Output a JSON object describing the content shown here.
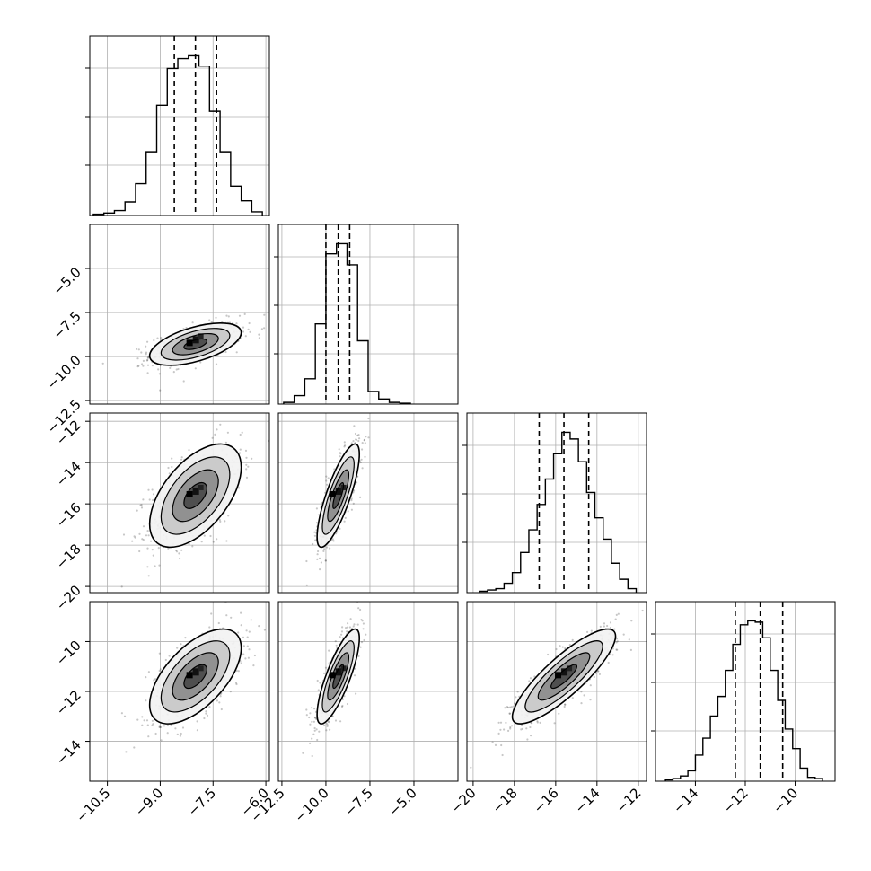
{
  "chart_data": {
    "type": "corner",
    "grid": true,
    "parameters": [
      {
        "range": [
          -11.0,
          -5.9
        ],
        "ticks": [
          "−10.5",
          "−9.0",
          "−7.5",
          "−6.0"
        ],
        "tick_values": [
          -10.5,
          -9.0,
          -7.5,
          -6.0
        ],
        "quantiles": [
          -8.6,
          -8.0,
          -7.4
        ],
        "hist": {
          "edges": [
            -10.9,
            -10.6,
            -10.3,
            -10.0,
            -9.7,
            -9.4,
            -9.1,
            -8.8,
            -8.5,
            -8.2,
            -7.9,
            -7.6,
            -7.3,
            -7.0,
            -6.7,
            -6.4,
            -6.1
          ],
          "counts": [
            1,
            2,
            4,
            11,
            26,
            52,
            90,
            120,
            128,
            131,
            122,
            85,
            52,
            24,
            12,
            3
          ]
        }
      },
      {
        "range": [
          -12.7,
          -2.5
        ],
        "ticks": [
          "−12.5",
          "−10.0",
          "−7.5",
          "−5.0"
        ],
        "tick_values": [
          -12.5,
          -10.0,
          -7.5,
          -5.0
        ],
        "quantiles": [
          -10.0,
          -9.3,
          -8.65
        ],
        "hist": {
          "edges": [
            -12.4,
            -11.8,
            -11.2,
            -10.6,
            -10.0,
            -9.4,
            -8.8,
            -8.2,
            -7.6,
            -7.0,
            -6.4,
            -5.8,
            -5.2
          ],
          "counts": [
            2,
            10,
            30,
            95,
            178,
            190,
            165,
            75,
            15,
            6,
            2,
            1
          ]
        }
      },
      {
        "range": [
          -20.3,
          -11.6
        ],
        "ticks": [
          "−20",
          "−18",
          "−16",
          "−14",
          "−12"
        ],
        "tick_values": [
          -20,
          -18,
          -16,
          -14,
          -12
        ],
        "quantiles": [
          -16.8,
          -15.6,
          -14.4
        ],
        "hist": {
          "edges": [
            -19.7,
            -19.3,
            -18.9,
            -18.5,
            -18.1,
            -17.7,
            -17.3,
            -16.9,
            -16.5,
            -16.1,
            -15.7,
            -15.3,
            -14.9,
            -14.5,
            -14.1,
            -13.7,
            -13.3,
            -12.9,
            -12.5,
            -12.1
          ],
          "counts": [
            1,
            2,
            3,
            7,
            15,
            30,
            47,
            66,
            85,
            104,
            120,
            115,
            98,
            75,
            56,
            40,
            22,
            10,
            3
          ]
        }
      },
      {
        "range": [
          -15.6,
          -8.4
        ],
        "ticks": [
          "−14",
          "−12",
          "−10"
        ],
        "tick_values": [
          -14,
          -12,
          -10
        ],
        "quantiles": [
          -12.4,
          -11.4,
          -10.5
        ],
        "hist": {
          "edges": [
            -15.2,
            -14.9,
            -14.6,
            -14.3,
            -14.0,
            -13.7,
            -13.4,
            -13.1,
            -12.8,
            -12.5,
            -12.2,
            -11.9,
            -11.6,
            -11.3,
            -11.0,
            -10.7,
            -10.4,
            -10.1,
            -9.8,
            -9.5,
            -9.2,
            -8.9
          ],
          "counts": [
            1,
            2,
            4,
            8,
            20,
            33,
            50,
            65,
            85,
            105,
            120,
            123,
            122,
            110,
            85,
            62,
            40,
            25,
            10,
            3,
            2
          ]
        }
      }
    ],
    "pairs": [
      {
        "row": 1,
        "col": 0,
        "mean": [
          -8.0,
          -9.3
        ],
        "sd": [
          0.65,
          0.6
        ],
        "rho": 0.55
      },
      {
        "row": 2,
        "col": 0,
        "mean": [
          -8.0,
          -15.6
        ],
        "sd": [
          0.65,
          1.25
        ],
        "rho": 0.55
      },
      {
        "row": 2,
        "col": 1,
        "mean": [
          -9.3,
          -15.6
        ],
        "sd": [
          0.6,
          1.25
        ],
        "rho": 0.8
      },
      {
        "row": 3,
        "col": 0,
        "mean": [
          -8.0,
          -11.4
        ],
        "sd": [
          0.65,
          0.95
        ],
        "rho": 0.6
      },
      {
        "row": 3,
        "col": 1,
        "mean": [
          -9.3,
          -11.4
        ],
        "sd": [
          0.6,
          0.95
        ],
        "rho": 0.8
      },
      {
        "row": 3,
        "col": 2,
        "mean": [
          -15.6,
          -11.4
        ],
        "sd": [
          1.25,
          0.95
        ],
        "rho": 0.85
      }
    ],
    "contour_levels_sigma": [
      0.5,
      1.0,
      1.5,
      2.0
    ]
  }
}
